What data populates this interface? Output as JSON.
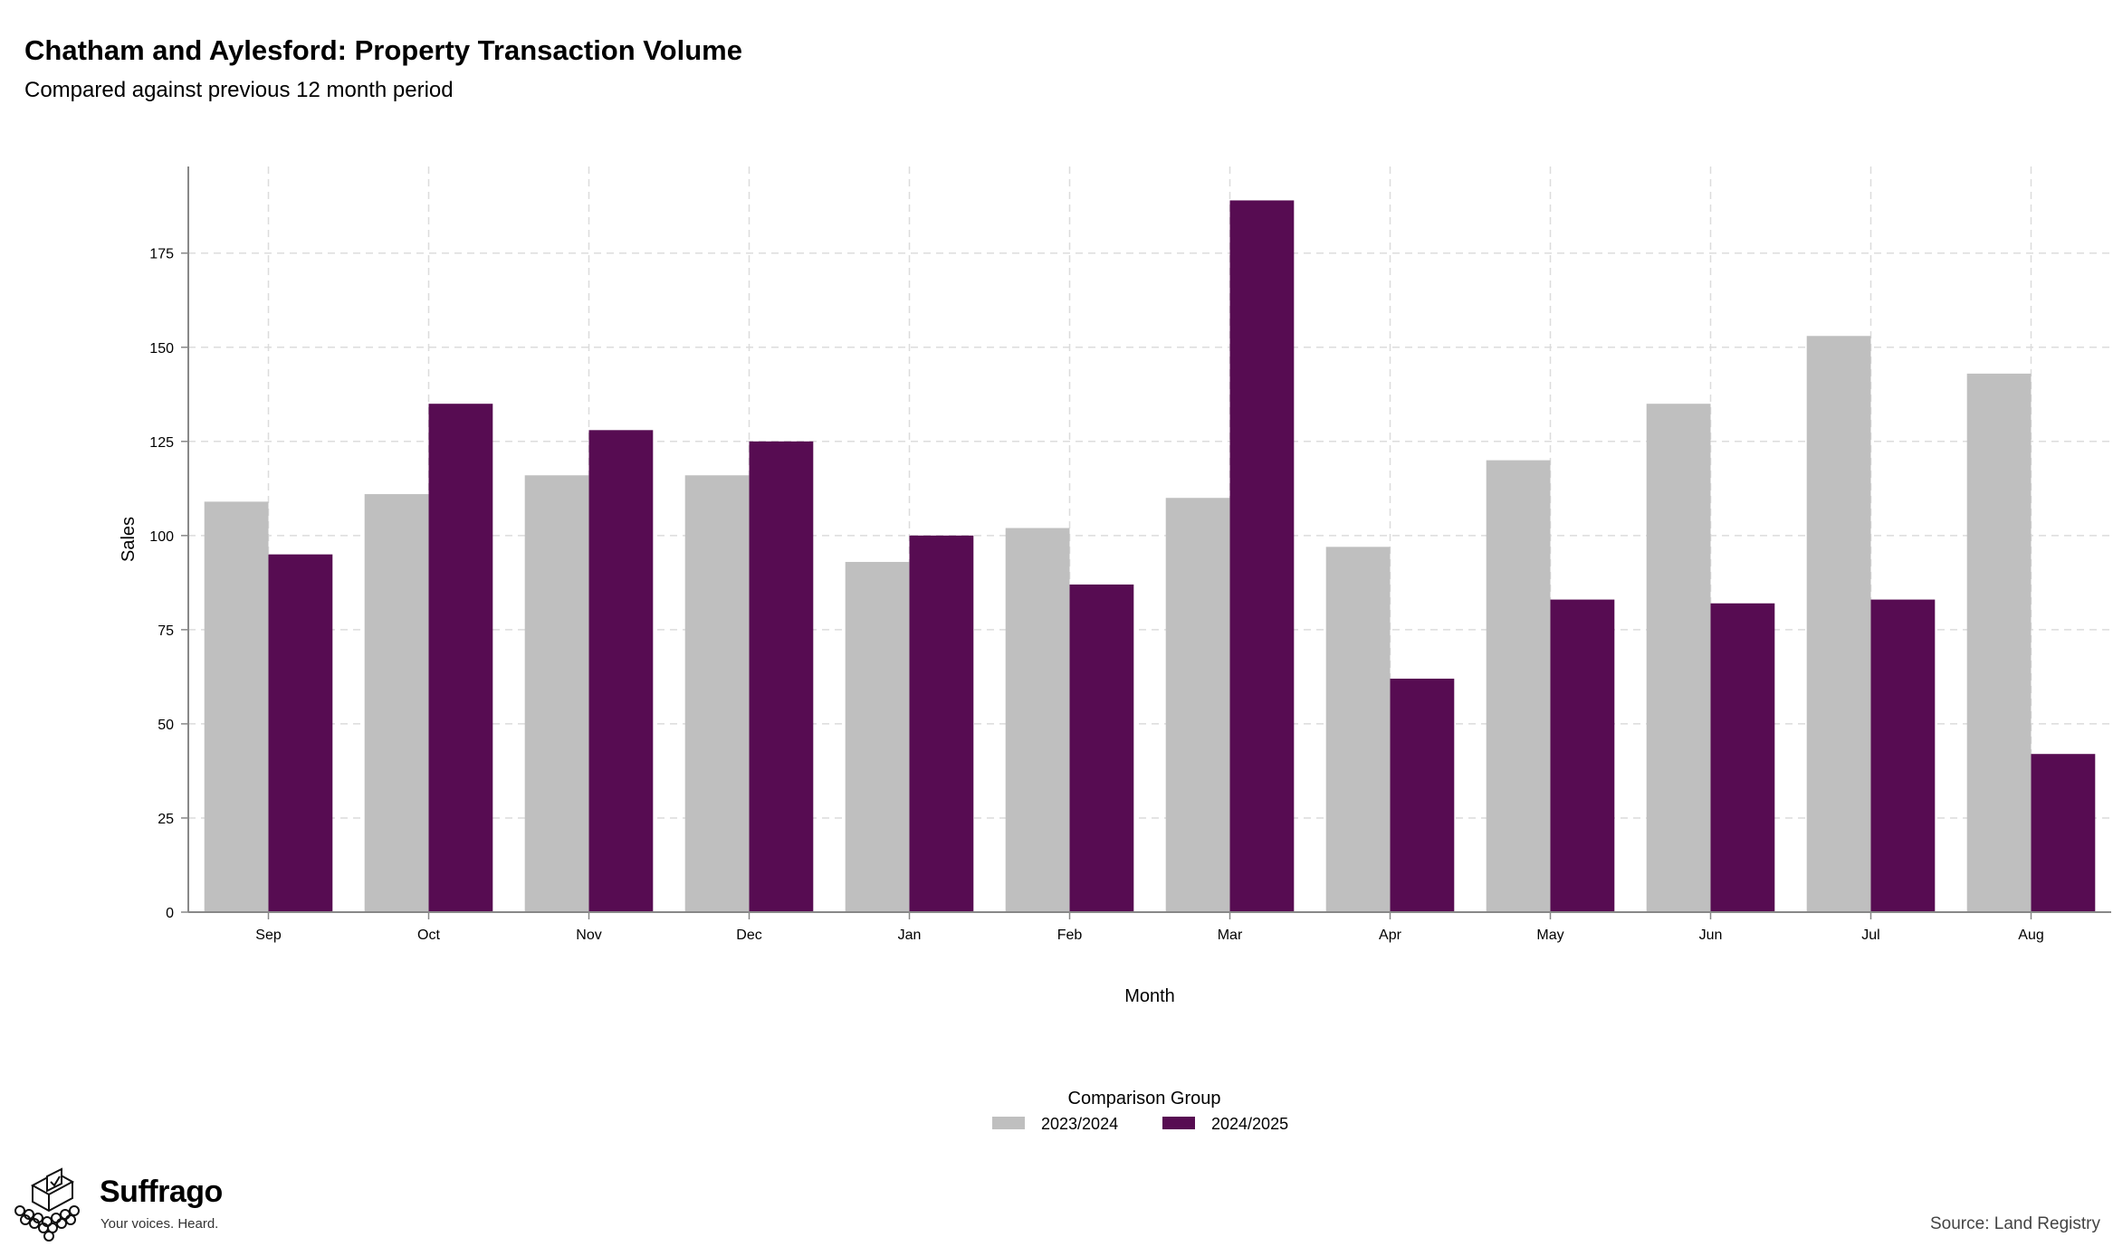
{
  "header": {
    "title": "Chatham and Aylesford: Property Transaction Volume",
    "subtitle": "Compared against previous 12 month period"
  },
  "footer": {
    "brand_name": "Suffrago",
    "brand_tagline": "Your voices. Heard.",
    "source": "Source: Land Registry"
  },
  "colors": {
    "series_2023_2024": "#bfbfbf",
    "series_2024_2025": "#570c52",
    "grid": "#dcdcdc",
    "axis": "#888888"
  },
  "chart_data": {
    "type": "bar",
    "xlabel": "Month",
    "ylabel": "Sales",
    "ylim": [
      0,
      198
    ],
    "yticks": [
      0,
      25,
      50,
      75,
      100,
      125,
      150,
      175
    ],
    "grid": true,
    "legend_title": "Comparison Group",
    "legend_position": "bottom",
    "categories": [
      "Sep",
      "Oct",
      "Nov",
      "Dec",
      "Jan",
      "Feb",
      "Mar",
      "Apr",
      "May",
      "Jun",
      "Jul",
      "Aug"
    ],
    "series": [
      {
        "name": "2023/2024",
        "color": "#bfbfbf",
        "values": [
          109,
          111,
          116,
          116,
          93,
          102,
          110,
          97,
          120,
          135,
          153,
          143
        ]
      },
      {
        "name": "2024/2025",
        "color": "#570c52",
        "values": [
          95,
          135,
          128,
          125,
          100,
          87,
          189,
          62,
          83,
          82,
          83,
          42
        ]
      }
    ]
  }
}
